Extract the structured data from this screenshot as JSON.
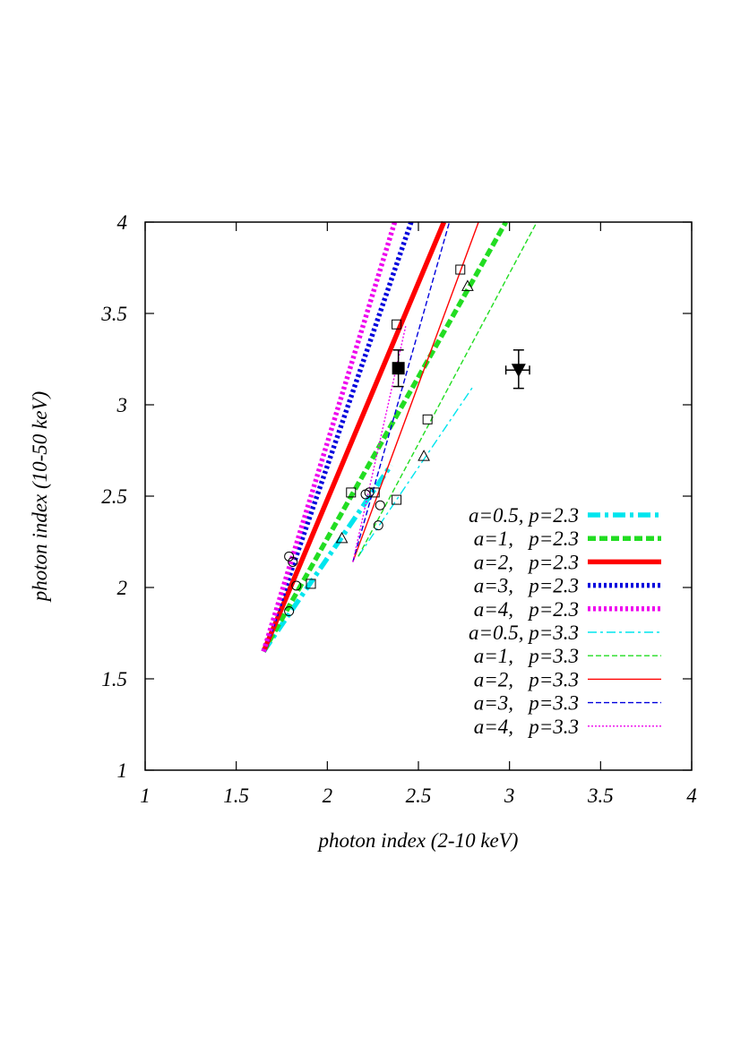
{
  "chart_data": {
    "type": "line",
    "xlabel": "photon index (2-10 keV)",
    "ylabel": "photon index (10-50 keV)",
    "xlim": [
      1,
      4
    ],
    "ylim": [
      1,
      4
    ],
    "x_ticks": [
      "1",
      "1.5",
      "2",
      "2.5",
      "3",
      "3.5",
      "4"
    ],
    "y_ticks": [
      "1",
      "1.5",
      "2",
      "2.5",
      "3",
      "3.5",
      "4"
    ],
    "legend_position": "bottom-right",
    "series": [
      {
        "name": "a=0.5, p=2.3",
        "color": "#00e5ee",
        "dash": "dashdot",
        "width": "thick",
        "points": [
          [
            1.65,
            1.65
          ],
          [
            2.35,
            2.67
          ]
        ]
      },
      {
        "name": "a=1,   p=2.3",
        "color": "#22dd22",
        "dash": "dash",
        "width": "thick",
        "points": [
          [
            1.65,
            1.65
          ],
          [
            2.98,
            4.0
          ]
        ]
      },
      {
        "name": "a=2,   p=2.3",
        "color": "#ff0000",
        "dash": "solid",
        "width": "thick",
        "points": [
          [
            1.65,
            1.65
          ],
          [
            2.64,
            4.0
          ]
        ]
      },
      {
        "name": "a=3,   p=2.3",
        "color": "#0000dd",
        "dash": "dot",
        "width": "thick",
        "points": [
          [
            1.65,
            1.65
          ],
          [
            2.46,
            4.0
          ]
        ]
      },
      {
        "name": "a=4,   p=2.3",
        "color": "#ee00ee",
        "dash": "dot",
        "width": "thick",
        "points": [
          [
            1.65,
            1.65
          ],
          [
            2.37,
            4.0
          ]
        ]
      },
      {
        "name": "a=0.5, p=3.3",
        "color": "#00e5ee",
        "dash": "dashdot",
        "width": "thin",
        "points": [
          [
            2.17,
            2.17
          ],
          [
            2.8,
            3.1
          ]
        ]
      },
      {
        "name": "a=1,   p=3.3",
        "color": "#22dd22",
        "dash": "dash",
        "width": "thin",
        "points": [
          [
            2.17,
            2.17
          ],
          [
            3.15,
            4.0
          ]
        ]
      },
      {
        "name": "a=2,   p=3.3",
        "color": "#ff0000",
        "dash": "solid",
        "width": "thin",
        "points": [
          [
            2.14,
            2.14
          ],
          [
            2.83,
            4.0
          ]
        ]
      },
      {
        "name": "a=3,   p=3.3",
        "color": "#0000dd",
        "dash": "dash",
        "width": "thin",
        "points": [
          [
            2.14,
            2.14
          ],
          [
            2.67,
            4.0
          ]
        ]
      },
      {
        "name": "a=4,   p=3.3",
        "color": "#ee00ee",
        "dash": "dot",
        "width": "thin",
        "points": [
          [
            2.14,
            2.14
          ],
          [
            2.43,
            3.43
          ]
        ]
      }
    ],
    "open_markers": [
      {
        "shape": "circle",
        "x": 1.79,
        "y": 2.17
      },
      {
        "shape": "circle",
        "x": 1.81,
        "y": 2.14
      },
      {
        "shape": "circle",
        "x": 1.83,
        "y": 2.01
      },
      {
        "shape": "circle",
        "x": 1.79,
        "y": 1.87
      },
      {
        "shape": "circle",
        "x": 2.21,
        "y": 2.51
      },
      {
        "shape": "circle",
        "x": 2.23,
        "y": 2.52
      },
      {
        "shape": "circle",
        "x": 2.29,
        "y": 2.45
      },
      {
        "shape": "circle",
        "x": 2.28,
        "y": 2.34
      },
      {
        "shape": "square",
        "x": 1.91,
        "y": 2.02
      },
      {
        "shape": "square",
        "x": 2.13,
        "y": 2.52
      },
      {
        "shape": "square",
        "x": 2.26,
        "y": 2.52
      },
      {
        "shape": "square",
        "x": 2.38,
        "y": 2.48
      },
      {
        "shape": "square",
        "x": 2.38,
        "y": 3.44
      },
      {
        "shape": "square",
        "x": 2.55,
        "y": 2.92
      },
      {
        "shape": "square",
        "x": 2.73,
        "y": 3.74
      },
      {
        "shape": "triangle",
        "x": 2.08,
        "y": 2.27
      },
      {
        "shape": "triangle",
        "x": 2.53,
        "y": 2.72
      },
      {
        "shape": "triangle",
        "x": 2.77,
        "y": 3.65
      }
    ],
    "observed_points": [
      {
        "shape": "filled-square",
        "x": 2.39,
        "y": 3.2,
        "yerr": [
          3.1,
          3.3
        ],
        "xerr": [
          2.37,
          2.41
        ]
      },
      {
        "shape": "filled-triangle-down",
        "x": 3.05,
        "y": 3.19,
        "yerr": [
          3.09,
          3.3
        ],
        "xerr": [
          2.98,
          3.11
        ]
      }
    ]
  }
}
